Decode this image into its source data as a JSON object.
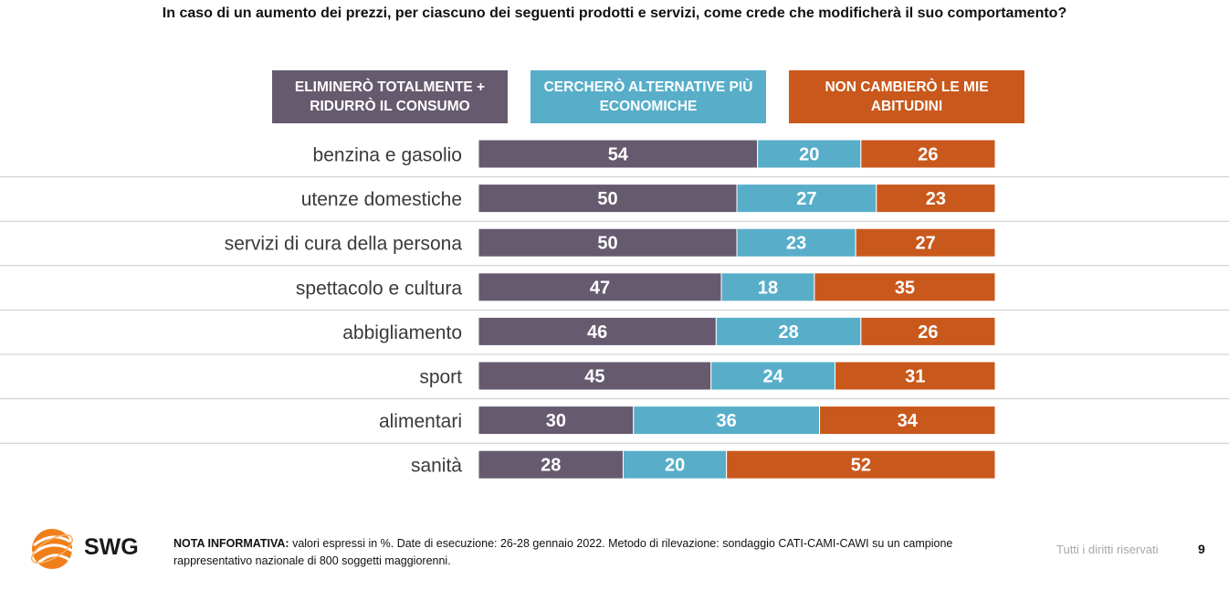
{
  "title": "In caso di un aumento dei prezzi, per ciascuno dei seguenti prodotti e servizi, come crede che modificherà il suo comportamento?",
  "chart_data": {
    "type": "bar",
    "stacked": true,
    "orientation": "horizontal",
    "categories": [
      "benzina e gasolio",
      "utenze domestiche",
      "servizi di cura della persona",
      "spettacolo e cultura",
      "abbigliamento",
      "sport",
      "alimentari",
      "sanità"
    ],
    "series": [
      {
        "name": "ELIMINERÒ TOTALMENTE +\nRIDURRÒ IL CONSUMO",
        "color": "#655a6e",
        "values": [
          54,
          50,
          50,
          47,
          46,
          45,
          30,
          28
        ]
      },
      {
        "name": "CERCHERÒ ALTERNATIVE PIÙ\nECONOMICHE",
        "color": "#58aec9",
        "values": [
          20,
          27,
          23,
          18,
          28,
          24,
          36,
          20
        ]
      },
      {
        "name": "NON CAMBIERÒ LE MIE\nABITUDINI",
        "color": "#c9581c",
        "values": [
          26,
          23,
          27,
          35,
          26,
          31,
          34,
          52
        ]
      }
    ],
    "xlim": [
      0,
      100
    ],
    "legend_position": "top"
  },
  "footer": {
    "brand": "SWG",
    "note_label": "NOTA INFORMATIVA:",
    "note_text": " valori espressi in %. Date di esecuzione: 26-28 gennaio 2022. Metodo di rilevazione: sondaggio CATI-CAMI-CAWI su un campione rappresentativo nazionale di 800 soggetti maggiorenni.",
    "rights": "Tutti i diritti riservati",
    "page": "9"
  }
}
